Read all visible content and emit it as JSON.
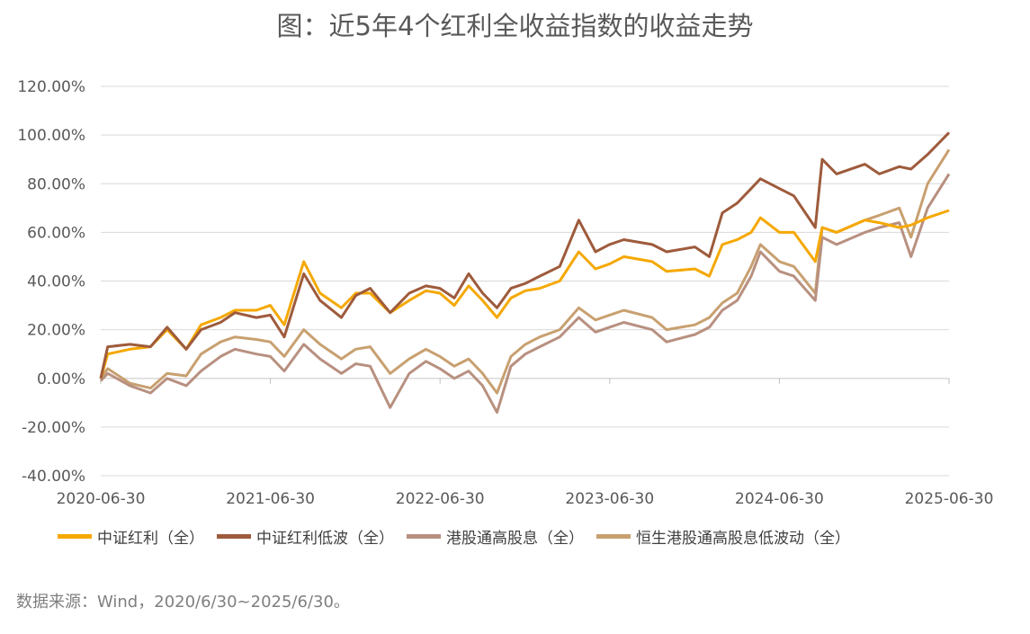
{
  "title": "图：近5年4个红利全收益指数的收益走势",
  "source": "数据来源：Wind，2020/6/30~2025/6/30。",
  "colors": {
    "grid": "#d9d9d9",
    "axis_text": "#595959"
  },
  "chart_data": {
    "type": "line",
    "title": "图：近5年4个红利全收益指数的收益走势",
    "x_tick_labels": [
      "2020-06-30",
      "2021-06-30",
      "2022-06-30",
      "2023-06-30",
      "2024-06-30",
      "2025-06-30"
    ],
    "y_tick_labels": [
      "120.00%",
      "100.00%",
      "80.00%",
      "60.00%",
      "40.00%",
      "20.00%",
      "0.00%",
      "-20.00%",
      "-40.00%"
    ],
    "ylim": [
      -40,
      120
    ],
    "xlim": [
      "2020-06-30",
      "2025-06-30"
    ],
    "grid": "horizontal",
    "legend_position": "bottom",
    "series": [
      {
        "name": "中证红利（全）",
        "color": "#F5A800",
        "points": [
          [
            "2020-06-30",
            0
          ],
          [
            "2020-07-15",
            10
          ],
          [
            "2020-09-01",
            12
          ],
          [
            "2020-10-15",
            13
          ],
          [
            "2020-11-20",
            20
          ],
          [
            "2020-12-31",
            12
          ],
          [
            "2021-02-01",
            22
          ],
          [
            "2021-03-15",
            25
          ],
          [
            "2021-04-15",
            28
          ],
          [
            "2021-05-31",
            28
          ],
          [
            "2021-06-30",
            30
          ],
          [
            "2021-07-30",
            22
          ],
          [
            "2021-09-10",
            48
          ],
          [
            "2021-10-15",
            35
          ],
          [
            "2021-11-30",
            29
          ],
          [
            "2021-12-31",
            35
          ],
          [
            "2022-01-31",
            35
          ],
          [
            "2022-03-15",
            27
          ],
          [
            "2022-04-25",
            32
          ],
          [
            "2022-05-31",
            36
          ],
          [
            "2022-06-30",
            35
          ],
          [
            "2022-07-31",
            30
          ],
          [
            "2022-08-31",
            38
          ],
          [
            "2022-09-30",
            32
          ],
          [
            "2022-10-31",
            25
          ],
          [
            "2022-11-30",
            33
          ],
          [
            "2022-12-31",
            36
          ],
          [
            "2023-01-31",
            37
          ],
          [
            "2023-03-15",
            40
          ],
          [
            "2023-04-25",
            52
          ],
          [
            "2023-05-31",
            45
          ],
          [
            "2023-06-30",
            47
          ],
          [
            "2023-07-31",
            50
          ],
          [
            "2023-09-30",
            48
          ],
          [
            "2023-10-31",
            44
          ],
          [
            "2023-12-31",
            45
          ],
          [
            "2024-01-31",
            42
          ],
          [
            "2024-02-28",
            55
          ],
          [
            "2024-03-31",
            57
          ],
          [
            "2024-04-30",
            60
          ],
          [
            "2024-05-20",
            66
          ],
          [
            "2024-06-30",
            60
          ],
          [
            "2024-07-31",
            60
          ],
          [
            "2024-09-15",
            48
          ],
          [
            "2024-09-30",
            62
          ],
          [
            "2024-10-31",
            60
          ],
          [
            "2024-12-31",
            65
          ],
          [
            "2025-01-31",
            64
          ],
          [
            "2025-03-15",
            62
          ],
          [
            "2025-04-09",
            63
          ],
          [
            "2025-05-15",
            66
          ],
          [
            "2025-06-30",
            69
          ]
        ]
      },
      {
        "name": "中证红利低波（全）",
        "color": "#9E5B3C",
        "points": [
          [
            "2020-06-30",
            0
          ],
          [
            "2020-07-15",
            13
          ],
          [
            "2020-09-01",
            14
          ],
          [
            "2020-10-15",
            13
          ],
          [
            "2020-11-20",
            21
          ],
          [
            "2020-12-31",
            12
          ],
          [
            "2021-02-01",
            20
          ],
          [
            "2021-03-15",
            23
          ],
          [
            "2021-04-15",
            27
          ],
          [
            "2021-05-31",
            25
          ],
          [
            "2021-06-30",
            26
          ],
          [
            "2021-07-30",
            17
          ],
          [
            "2021-09-10",
            43
          ],
          [
            "2021-10-15",
            32
          ],
          [
            "2021-11-30",
            25
          ],
          [
            "2021-12-31",
            34
          ],
          [
            "2022-01-31",
            37
          ],
          [
            "2022-03-15",
            27
          ],
          [
            "2022-04-25",
            35
          ],
          [
            "2022-05-31",
            38
          ],
          [
            "2022-06-30",
            37
          ],
          [
            "2022-07-31",
            33
          ],
          [
            "2022-08-31",
            43
          ],
          [
            "2022-09-30",
            35
          ],
          [
            "2022-10-31",
            29
          ],
          [
            "2022-11-30",
            37
          ],
          [
            "2022-12-31",
            39
          ],
          [
            "2023-01-31",
            42
          ],
          [
            "2023-03-15",
            46
          ],
          [
            "2023-04-25",
            65
          ],
          [
            "2023-05-31",
            52
          ],
          [
            "2023-06-30",
            55
          ],
          [
            "2023-07-31",
            57
          ],
          [
            "2023-09-30",
            55
          ],
          [
            "2023-10-31",
            52
          ],
          [
            "2023-12-31",
            54
          ],
          [
            "2024-01-31",
            50
          ],
          [
            "2024-02-28",
            68
          ],
          [
            "2024-03-31",
            72
          ],
          [
            "2024-04-30",
            78
          ],
          [
            "2024-05-20",
            82
          ],
          [
            "2024-06-30",
            78
          ],
          [
            "2024-07-31",
            75
          ],
          [
            "2024-09-15",
            62
          ],
          [
            "2024-09-30",
            90
          ],
          [
            "2024-10-31",
            84
          ],
          [
            "2024-12-31",
            88
          ],
          [
            "2025-01-31",
            84
          ],
          [
            "2025-03-15",
            87
          ],
          [
            "2025-04-09",
            86
          ],
          [
            "2025-05-15",
            92
          ],
          [
            "2025-06-30",
            101
          ]
        ]
      },
      {
        "name": "港股通高股息（全）",
        "color": "#B89080",
        "points": [
          [
            "2020-06-30",
            -1
          ],
          [
            "2020-07-15",
            2
          ],
          [
            "2020-09-01",
            -3
          ],
          [
            "2020-10-15",
            -6
          ],
          [
            "2020-11-20",
            0
          ],
          [
            "2020-12-31",
            -3
          ],
          [
            "2021-02-01",
            3
          ],
          [
            "2021-03-15",
            9
          ],
          [
            "2021-04-15",
            12
          ],
          [
            "2021-05-31",
            10
          ],
          [
            "2021-06-30",
            9
          ],
          [
            "2021-07-30",
            3
          ],
          [
            "2021-09-10",
            14
          ],
          [
            "2021-10-15",
            8
          ],
          [
            "2021-11-30",
            2
          ],
          [
            "2021-12-31",
            6
          ],
          [
            "2022-01-31",
            5
          ],
          [
            "2022-03-15",
            -12
          ],
          [
            "2022-04-25",
            2
          ],
          [
            "2022-05-31",
            7
          ],
          [
            "2022-06-30",
            4
          ],
          [
            "2022-07-31",
            0
          ],
          [
            "2022-08-31",
            3
          ],
          [
            "2022-09-30",
            -3
          ],
          [
            "2022-10-31",
            -14
          ],
          [
            "2022-11-30",
            5
          ],
          [
            "2022-12-31",
            10
          ],
          [
            "2023-01-31",
            13
          ],
          [
            "2023-03-15",
            17
          ],
          [
            "2023-04-25",
            25
          ],
          [
            "2023-05-31",
            19
          ],
          [
            "2023-06-30",
            21
          ],
          [
            "2023-07-31",
            23
          ],
          [
            "2023-09-30",
            20
          ],
          [
            "2023-10-31",
            15
          ],
          [
            "2023-12-31",
            18
          ],
          [
            "2024-01-31",
            21
          ],
          [
            "2024-02-28",
            28
          ],
          [
            "2024-03-31",
            32
          ],
          [
            "2024-04-30",
            42
          ],
          [
            "2024-05-20",
            52
          ],
          [
            "2024-06-30",
            44
          ],
          [
            "2024-07-31",
            42
          ],
          [
            "2024-09-15",
            32
          ],
          [
            "2024-09-30",
            58
          ],
          [
            "2024-10-31",
            55
          ],
          [
            "2024-12-31",
            60
          ],
          [
            "2025-01-31",
            62
          ],
          [
            "2025-03-15",
            64
          ],
          [
            "2025-04-09",
            50
          ],
          [
            "2025-05-15",
            70
          ],
          [
            "2025-06-30",
            84
          ]
        ]
      },
      {
        "name": "恒生港股通高股息低波动（全）",
        "color": "#C8A070",
        "points": [
          [
            "2020-06-30",
            0
          ],
          [
            "2020-07-15",
            4
          ],
          [
            "2020-09-01",
            -2
          ],
          [
            "2020-10-15",
            -4
          ],
          [
            "2020-11-20",
            2
          ],
          [
            "2020-12-31",
            1
          ],
          [
            "2021-02-01",
            10
          ],
          [
            "2021-03-15",
            15
          ],
          [
            "2021-04-15",
            17
          ],
          [
            "2021-05-31",
            16
          ],
          [
            "2021-06-30",
            15
          ],
          [
            "2021-07-30",
            9
          ],
          [
            "2021-09-10",
            20
          ],
          [
            "2021-10-15",
            14
          ],
          [
            "2021-11-30",
            8
          ],
          [
            "2021-12-31",
            12
          ],
          [
            "2022-01-31",
            13
          ],
          [
            "2022-03-15",
            2
          ],
          [
            "2022-04-25",
            8
          ],
          [
            "2022-05-31",
            12
          ],
          [
            "2022-06-30",
            9
          ],
          [
            "2022-07-31",
            5
          ],
          [
            "2022-08-31",
            8
          ],
          [
            "2022-09-30",
            2
          ],
          [
            "2022-10-31",
            -6
          ],
          [
            "2022-11-30",
            9
          ],
          [
            "2022-12-31",
            14
          ],
          [
            "2023-01-31",
            17
          ],
          [
            "2023-03-15",
            20
          ],
          [
            "2023-04-25",
            29
          ],
          [
            "2023-05-31",
            24
          ],
          [
            "2023-06-30",
            26
          ],
          [
            "2023-07-31",
            28
          ],
          [
            "2023-09-30",
            25
          ],
          [
            "2023-10-31",
            20
          ],
          [
            "2023-12-31",
            22
          ],
          [
            "2024-01-31",
            25
          ],
          [
            "2024-02-28",
            31
          ],
          [
            "2024-03-31",
            35
          ],
          [
            "2024-04-30",
            46
          ],
          [
            "2024-05-20",
            55
          ],
          [
            "2024-06-30",
            48
          ],
          [
            "2024-07-31",
            46
          ],
          [
            "2024-09-15",
            35
          ],
          [
            "2024-09-30",
            62
          ],
          [
            "2024-10-31",
            60
          ],
          [
            "2024-12-31",
            65
          ],
          [
            "2025-01-31",
            67
          ],
          [
            "2025-03-15",
            70
          ],
          [
            "2025-04-09",
            58
          ],
          [
            "2025-05-15",
            80
          ],
          [
            "2025-06-30",
            94
          ]
        ]
      }
    ]
  }
}
